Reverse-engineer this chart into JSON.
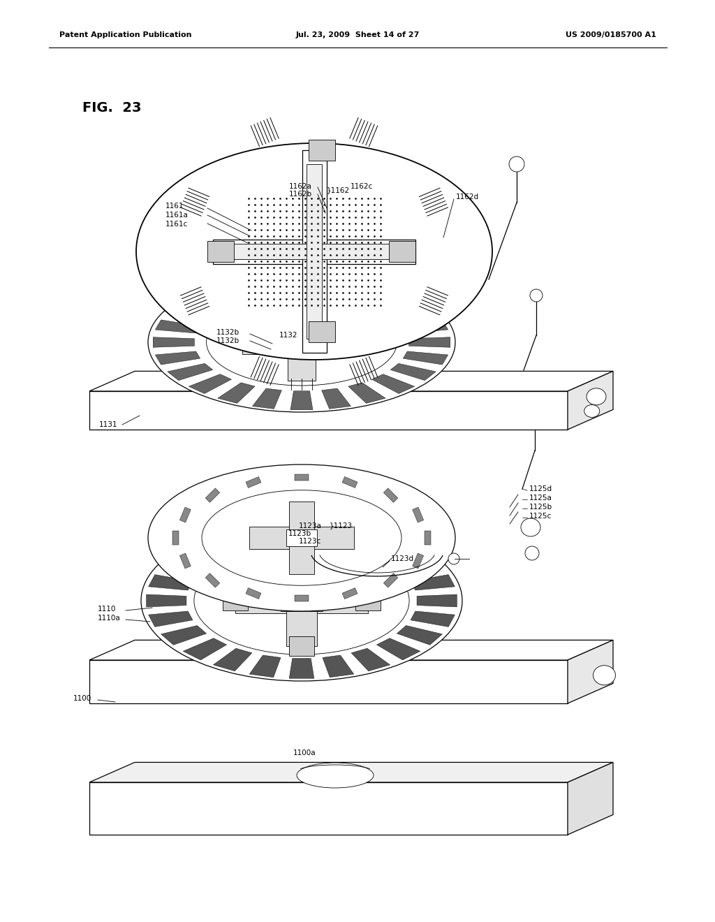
{
  "header_left": "Patent Application Publication",
  "header_mid": "Jul. 23, 2009  Sheet 14 of 27",
  "header_right": "US 2009/0185700 A1",
  "fig_title": "FIG.  23",
  "bg": "#ffffff",
  "lc": "#000000"
}
